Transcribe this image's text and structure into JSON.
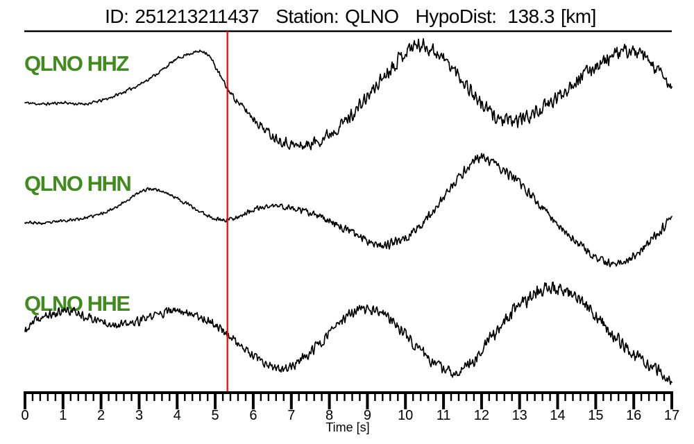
{
  "header": {
    "id_label": "ID:",
    "id_value": "251213211437",
    "station_label": "Station:",
    "station_value": "QLNO",
    "hypodist_label": "HypoDist:",
    "hypodist_value": "138.3",
    "hypodist_unit": "[km]"
  },
  "colors": {
    "trace": "#000000",
    "label_green": "#3f8c1c",
    "pick_red": "#ff0000"
  },
  "chart_data": {
    "type": "line",
    "title": "ID: 251213211437   Station: QLNO   HypoDist:   138.3 [km]",
    "xlabel": "Time [s]",
    "ylabel": "",
    "x_range": [
      0,
      17
    ],
    "x_major_tick_step": 1,
    "x_minor_tick_step": 0.2,
    "x_tick_labels": [
      "0",
      "1",
      "2",
      "3",
      "4",
      "5",
      "6",
      "7",
      "8",
      "9",
      "10",
      "11",
      "12",
      "13",
      "14",
      "15",
      "16",
      "17"
    ],
    "grid": false,
    "legend": false,
    "pick_time_s": 5.32,
    "amplitude_units": "normalized (px offset from trace baseline, up = positive)",
    "series": [
      {
        "name": "QLNO HHZ",
        "seed": 11,
        "keypoints": [
          [
            0,
            -8
          ],
          [
            0.5,
            -10
          ],
          [
            1,
            -8
          ],
          [
            1.5,
            -10
          ],
          [
            2,
            -5
          ],
          [
            2.5,
            5
          ],
          [
            3,
            18
          ],
          [
            3.5,
            35
          ],
          [
            4,
            55
          ],
          [
            4.5,
            65
          ],
          [
            4.8,
            62
          ],
          [
            5.35,
            10
          ],
          [
            6,
            -30
          ],
          [
            6.5,
            -55
          ],
          [
            7,
            -68
          ],
          [
            7.3,
            -70
          ],
          [
            7.8,
            -60
          ],
          [
            8.5,
            -30
          ],
          [
            9,
            0
          ],
          [
            9.5,
            35
          ],
          [
            10,
            65
          ],
          [
            10.3,
            75
          ],
          [
            10.8,
            65
          ],
          [
            11.5,
            25
          ],
          [
            12,
            -10
          ],
          [
            12.5,
            -32
          ],
          [
            12.8,
            -35
          ],
          [
            13.5,
            -20
          ],
          [
            14,
            0
          ],
          [
            14.5,
            25
          ],
          [
            15,
            45
          ],
          [
            15.5,
            60
          ],
          [
            15.8,
            67
          ],
          [
            16.2,
            60
          ],
          [
            16.6,
            40
          ],
          [
            17,
            12
          ]
        ],
        "noise_envelope": [
          [
            0,
            1.5
          ],
          [
            4.5,
            1.8
          ],
          [
            5.4,
            3
          ],
          [
            6,
            5
          ],
          [
            7,
            6
          ],
          [
            8,
            7
          ],
          [
            10,
            8
          ],
          [
            13,
            8
          ],
          [
            17,
            7
          ]
        ]
      },
      {
        "name": "QLNO HHN",
        "seed": 23,
        "keypoints": [
          [
            0,
            -10
          ],
          [
            0.5,
            -12
          ],
          [
            1,
            -8
          ],
          [
            1.5,
            -5
          ],
          [
            2,
            2
          ],
          [
            2.5,
            15
          ],
          [
            3,
            32
          ],
          [
            3.3,
            38
          ],
          [
            3.7,
            32
          ],
          [
            4.2,
            18
          ],
          [
            4.7,
            2
          ],
          [
            5.2,
            -7
          ],
          [
            5.6,
            -2
          ],
          [
            6,
            7
          ],
          [
            6.5,
            13
          ],
          [
            7,
            10
          ],
          [
            7.5,
            2
          ],
          [
            8,
            -8
          ],
          [
            8.7,
            -28
          ],
          [
            9.3,
            -42
          ],
          [
            9.7,
            -40
          ],
          [
            10.3,
            -20
          ],
          [
            11,
            25
          ],
          [
            11.5,
            60
          ],
          [
            11.9,
            82
          ],
          [
            12.3,
            75
          ],
          [
            13,
            45
          ],
          [
            13.7,
            5
          ],
          [
            14.4,
            -35
          ],
          [
            15,
            -62
          ],
          [
            15.4,
            -70
          ],
          [
            15.9,
            -62
          ],
          [
            16.4,
            -40
          ],
          [
            17,
            -3
          ]
        ],
        "noise_envelope": [
          [
            0,
            1.5
          ],
          [
            4,
            1.8
          ],
          [
            5.2,
            2.5
          ],
          [
            6,
            3
          ],
          [
            8,
            4
          ],
          [
            10,
            5
          ],
          [
            13,
            5
          ],
          [
            17,
            5
          ]
        ]
      },
      {
        "name": "QLNO HHE",
        "seed": 37,
        "keypoints": [
          [
            0,
            2
          ],
          [
            0.3,
            18
          ],
          [
            0.8,
            28
          ],
          [
            1.2,
            32
          ],
          [
            1.7,
            22
          ],
          [
            2.2,
            15
          ],
          [
            2.6,
            12
          ],
          [
            3,
            17
          ],
          [
            3.5,
            27
          ],
          [
            4,
            32
          ],
          [
            4.4,
            28
          ],
          [
            5,
            12
          ],
          [
            5.35,
            -3
          ],
          [
            5.8,
            -25
          ],
          [
            6.3,
            -45
          ],
          [
            6.6,
            -52
          ],
          [
            7,
            -48
          ],
          [
            7.5,
            -28
          ],
          [
            8,
            0
          ],
          [
            8.5,
            25
          ],
          [
            8.8,
            33
          ],
          [
            9.3,
            30
          ],
          [
            9.8,
            10
          ],
          [
            10.3,
            -20
          ],
          [
            10.8,
            -45
          ],
          [
            11.2,
            -57
          ],
          [
            11.6,
            -48
          ],
          [
            12,
            -25
          ],
          [
            12.5,
            10
          ],
          [
            13,
            40
          ],
          [
            13.5,
            60
          ],
          [
            13.9,
            65
          ],
          [
            14.4,
            55
          ],
          [
            15,
            25
          ],
          [
            15.5,
            -5
          ],
          [
            16,
            -30
          ],
          [
            16.5,
            -50
          ],
          [
            17,
            -68
          ]
        ],
        "noise_envelope": [
          [
            0,
            5
          ],
          [
            2,
            5
          ],
          [
            4,
            4.5
          ],
          [
            5.4,
            5
          ],
          [
            7,
            5.5
          ],
          [
            9,
            6
          ],
          [
            11,
            6.5
          ],
          [
            13,
            8
          ],
          [
            14.5,
            7.5
          ],
          [
            17,
            6
          ]
        ]
      }
    ]
  }
}
